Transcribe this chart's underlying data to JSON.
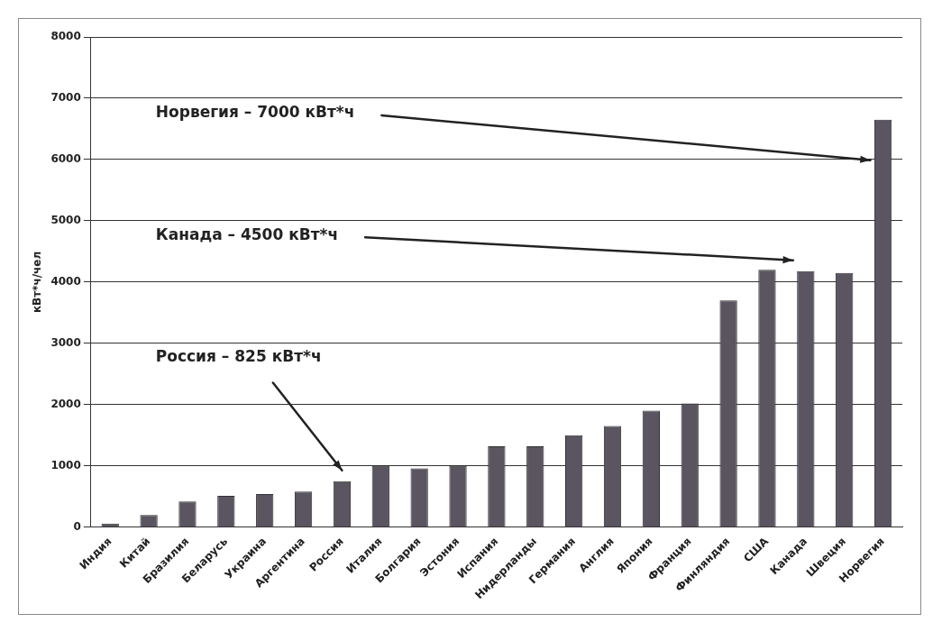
{
  "chart_data": {
    "type": "bar",
    "ylabel": "кВт*ч/чел",
    "categories": [
      "Индия",
      "Китай",
      "Бразилия",
      "Беларусь",
      "Украина",
      "Аргентина",
      "Россия",
      "Италия",
      "Болгария",
      "Эстония",
      "Испания",
      "Нидерланды",
      "Германия",
      "Англия",
      "Япония",
      "Франция",
      "Финляндия",
      "США",
      "Канада",
      "Швеция",
      "Норвегия"
    ],
    "values": [
      60,
      200,
      420,
      510,
      540,
      580,
      750,
      1000,
      960,
      1000,
      1320,
      1320,
      1500,
      1650,
      1900,
      2020,
      3700,
      4200,
      4180,
      4150,
      6650
    ],
    "color": "#5a5560",
    "ylim": [
      0,
      8000
    ],
    "yticks": [
      0,
      1000,
      2000,
      3000,
      4000,
      5000,
      6000,
      7000,
      8000
    ],
    "grid": "y",
    "legend": false,
    "annotations": [
      "Норвегия – 7000 кВт*ч",
      "Канада – 4500 кВт*ч",
      "Россия – 825 кВт*ч"
    ]
  }
}
